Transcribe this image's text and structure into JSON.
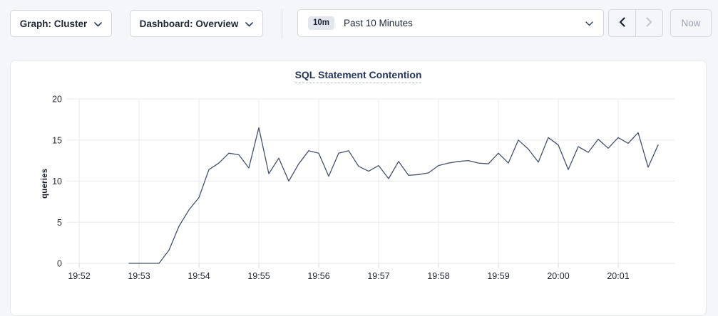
{
  "toolbar": {
    "graph_dropdown": {
      "label": "Graph: Cluster"
    },
    "dashboard_dropdown": {
      "label": "Dashboard: Overview"
    },
    "time_picker": {
      "badge": "10m",
      "label": "Past 10 Minutes"
    },
    "now_button_label": "Now"
  },
  "chart_data": {
    "type": "line",
    "title": "SQL Statement Contention",
    "xlabel": "",
    "ylabel": "queries",
    "ylim": [
      0,
      20
    ],
    "y_ticks": [
      0,
      5,
      10,
      15,
      20
    ],
    "x_ticks": [
      "19:52",
      "19:53",
      "19:54",
      "19:55",
      "19:56",
      "19:57",
      "19:58",
      "19:59",
      "20:00",
      "20:01"
    ],
    "grid": true,
    "legend": false,
    "line_color": "#475069",
    "grid_color": "#e9eaee",
    "series": [
      {
        "name": "queries",
        "points": [
          [
            "19:52:50",
            0
          ],
          [
            "19:53:00",
            0
          ],
          [
            "19:53:10",
            0
          ],
          [
            "19:53:20",
            0
          ],
          [
            "19:53:30",
            1.6
          ],
          [
            "19:53:40",
            4.5
          ],
          [
            "19:53:50",
            6.5
          ],
          [
            "19:54:00",
            8.0
          ],
          [
            "19:54:10",
            11.4
          ],
          [
            "19:54:20",
            12.2
          ],
          [
            "19:54:30",
            13.4
          ],
          [
            "19:54:40",
            13.2
          ],
          [
            "19:54:50",
            11.6
          ],
          [
            "19:55:00",
            16.5
          ],
          [
            "19:55:10",
            10.9
          ],
          [
            "19:55:20",
            12.8
          ],
          [
            "19:55:30",
            10.0
          ],
          [
            "19:55:40",
            12.1
          ],
          [
            "19:55:50",
            13.7
          ],
          [
            "19:56:00",
            13.4
          ],
          [
            "19:56:10",
            10.6
          ],
          [
            "19:56:20",
            13.4
          ],
          [
            "19:56:30",
            13.7
          ],
          [
            "19:56:40",
            11.8
          ],
          [
            "19:56:50",
            11.2
          ],
          [
            "19:57:00",
            11.9
          ],
          [
            "19:57:10",
            10.3
          ],
          [
            "19:57:20",
            12.4
          ],
          [
            "19:57:30",
            10.7
          ],
          [
            "19:57:40",
            10.8
          ],
          [
            "19:57:50",
            11.0
          ],
          [
            "19:58:00",
            11.9
          ],
          [
            "19:58:10",
            12.2
          ],
          [
            "19:58:20",
            12.4
          ],
          [
            "19:58:30",
            12.5
          ],
          [
            "19:58:40",
            12.2
          ],
          [
            "19:58:50",
            12.1
          ],
          [
            "19:59:00",
            13.4
          ],
          [
            "19:59:10",
            12.2
          ],
          [
            "19:59:20",
            15.0
          ],
          [
            "19:59:30",
            13.9
          ],
          [
            "19:59:40",
            12.3
          ],
          [
            "19:59:50",
            15.3
          ],
          [
            "20:00:00",
            14.4
          ],
          [
            "20:00:10",
            11.4
          ],
          [
            "20:00:20",
            14.2
          ],
          [
            "20:00:30",
            13.5
          ],
          [
            "20:00:40",
            15.1
          ],
          [
            "20:00:50",
            14.0
          ],
          [
            "20:01:00",
            15.3
          ],
          [
            "20:01:10",
            14.6
          ],
          [
            "20:01:20",
            15.9
          ],
          [
            "20:01:30",
            11.7
          ],
          [
            "20:01:40",
            14.4
          ]
        ]
      }
    ]
  }
}
